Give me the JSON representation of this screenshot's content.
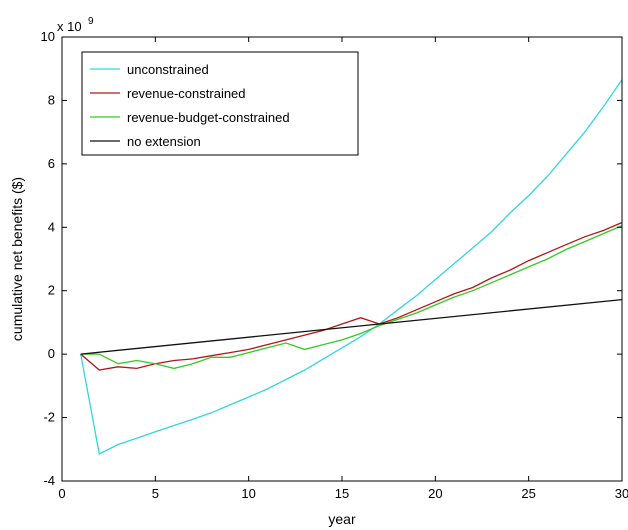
{
  "chart_data": {
    "type": "line",
    "xlabel": "year",
    "ylabel": "cumulative net benefits ($)",
    "y_multiplier": "x 10",
    "y_multiplier_exp": "9",
    "xlim": [
      0,
      30
    ],
    "ylim": [
      -4,
      10
    ],
    "xticks": [
      0,
      5,
      10,
      15,
      20,
      25,
      30
    ],
    "yticks": [
      -4,
      -2,
      0,
      2,
      4,
      6,
      8,
      10
    ],
    "grid": false,
    "legend_position": "top-left",
    "series": [
      {
        "name": "unconstrained",
        "color": "#33d6de",
        "x": [
          1,
          2,
          3,
          4,
          5,
          6,
          7,
          8,
          9,
          10,
          11,
          12,
          13,
          14,
          15,
          16,
          17,
          18,
          19,
          20,
          21,
          22,
          23,
          24,
          25,
          26,
          27,
          28,
          29,
          30
        ],
        "y": [
          0.0,
          -3.15,
          -2.85,
          -2.65,
          -2.45,
          -2.25,
          -2.05,
          -1.85,
          -1.6,
          -1.35,
          -1.1,
          -0.8,
          -0.5,
          -0.15,
          0.2,
          0.55,
          0.95,
          1.4,
          1.85,
          2.35,
          2.85,
          3.35,
          3.85,
          4.45,
          5.0,
          5.6,
          6.3,
          7.0,
          7.8,
          8.65
        ]
      },
      {
        "name": "revenue-constrained",
        "color": "#b01818",
        "x": [
          1,
          2,
          3,
          4,
          5,
          6,
          7,
          8,
          9,
          10,
          11,
          12,
          13,
          14,
          15,
          16,
          17,
          18,
          19,
          20,
          21,
          22,
          23,
          24,
          25,
          26,
          27,
          28,
          29,
          30
        ],
        "y": [
          0.0,
          -0.5,
          -0.4,
          -0.45,
          -0.3,
          -0.2,
          -0.15,
          -0.05,
          0.05,
          0.15,
          0.3,
          0.45,
          0.6,
          0.75,
          0.95,
          1.15,
          0.95,
          1.15,
          1.4,
          1.65,
          1.9,
          2.1,
          2.4,
          2.65,
          2.95,
          3.2,
          3.45,
          3.7,
          3.9,
          4.15
        ]
      },
      {
        "name": "revenue-budget-constrained",
        "color": "#33cc22",
        "x": [
          1,
          2,
          3,
          4,
          5,
          6,
          7,
          8,
          9,
          10,
          11,
          12,
          13,
          14,
          15,
          16,
          17,
          18,
          19,
          20,
          21,
          22,
          23,
          24,
          25,
          26,
          27,
          28,
          29,
          30
        ],
        "y": [
          0.0,
          0.0,
          -0.3,
          -0.2,
          -0.3,
          -0.45,
          -0.3,
          -0.1,
          -0.1,
          0.05,
          0.2,
          0.35,
          0.15,
          0.3,
          0.45,
          0.65,
          0.9,
          1.1,
          1.3,
          1.55,
          1.8,
          2.0,
          2.25,
          2.5,
          2.75,
          3.0,
          3.3,
          3.55,
          3.8,
          4.05
        ]
      },
      {
        "name": "no extension",
        "color": "#111111",
        "x": [
          1,
          30
        ],
        "y": [
          0.0,
          1.72
        ]
      }
    ]
  }
}
